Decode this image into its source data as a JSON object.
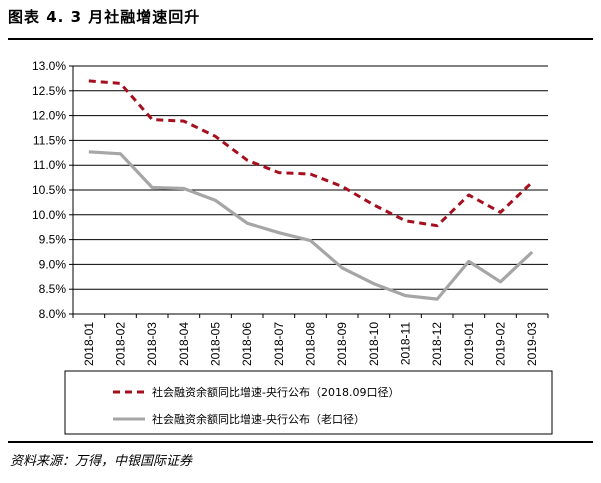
{
  "figure": {
    "title": "图表 4. 3 月社融增速回升",
    "source": "资料来源：万得，中银国际证券"
  },
  "chart_data": {
    "type": "line",
    "title": "",
    "xlabel": "",
    "ylabel": "",
    "categories": [
      "2018-01",
      "2018-02",
      "2018-03",
      "2018-04",
      "2018-05",
      "2018-06",
      "2018-07",
      "2018-08",
      "2018-09",
      "2018-10",
      "2018-11",
      "2018-12",
      "2019-01",
      "2019-02",
      "2019-03"
    ],
    "ylim": [
      8.0,
      13.0
    ],
    "ystep": 0.5,
    "yformat": "percent-1dp",
    "grid": "horizontal",
    "legend_position": "bottom",
    "series": [
      {
        "name": "社会融资余额同比增速-央行公布（2018.09口径）",
        "style": "dashed",
        "color": "#A50F1E",
        "values": [
          12.7,
          12.65,
          11.92,
          11.89,
          11.58,
          11.1,
          10.85,
          10.82,
          10.57,
          10.2,
          9.88,
          9.78,
          10.4,
          10.05,
          10.66
        ]
      },
      {
        "name": "社会融资余额同比增速-央行公布（老口径）",
        "style": "solid",
        "color": "#A6A6A6",
        "values": [
          11.27,
          11.23,
          10.55,
          10.53,
          10.29,
          9.83,
          9.64,
          9.48,
          8.93,
          8.61,
          8.37,
          8.3,
          9.06,
          8.65,
          9.25
        ]
      }
    ]
  }
}
